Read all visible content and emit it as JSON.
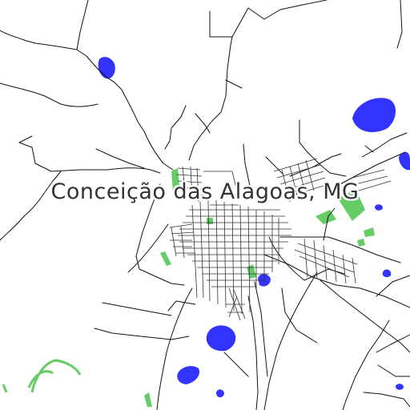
{
  "map": {
    "place_label": "Conceição das Alagoas, MG",
    "colors": {
      "background": "#ffffff",
      "roads": "#111111",
      "water": "#3333ff",
      "vegetation": "#66cc66",
      "label": "#333333"
    },
    "features": [
      "roads",
      "street-grid",
      "water-bodies",
      "vegetation"
    ]
  }
}
